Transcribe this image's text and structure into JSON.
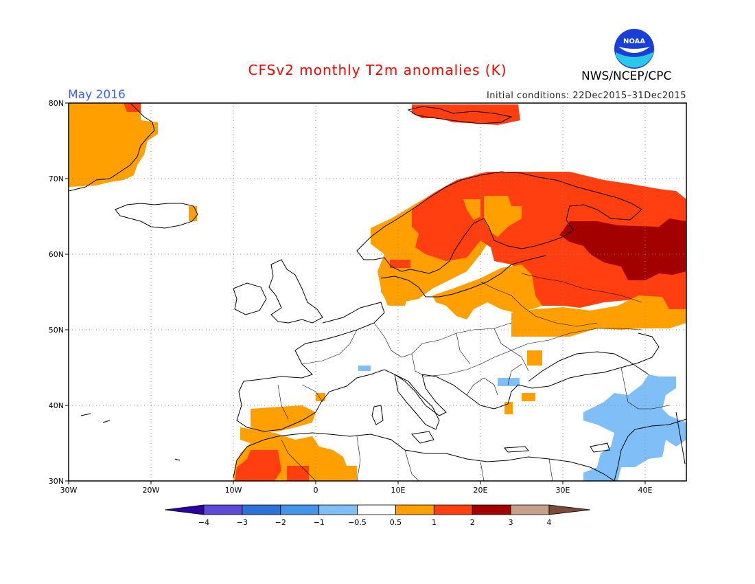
{
  "header": {
    "title": "CFSv2 monthly T2m anomalies (K)",
    "month": "May 2016",
    "initial_conditions": "Initial conditions: 22Dec2015–31Dec2015",
    "agency": "NWS/NCEP/CPC",
    "logo_text": "NOAA",
    "logo_icon": "noaa-logo-icon"
  },
  "map": {
    "lon_range": [
      -30,
      45
    ],
    "lat_range": [
      30,
      80
    ],
    "x_ticks": [
      {
        "lon": -30,
        "label": "30W"
      },
      {
        "lon": -20,
        "label": "20W"
      },
      {
        "lon": -10,
        "label": "10W"
      },
      {
        "lon": 0,
        "label": "0"
      },
      {
        "lon": 10,
        "label": "10E"
      },
      {
        "lon": 20,
        "label": "20E"
      },
      {
        "lon": 30,
        "label": "30E"
      },
      {
        "lon": 40,
        "label": "40E"
      }
    ],
    "y_ticks": [
      {
        "lat": 80,
        "label": "80N"
      },
      {
        "lat": 70,
        "label": "70N"
      },
      {
        "lat": 60,
        "label": "60N"
      },
      {
        "lat": 50,
        "label": "50N"
      },
      {
        "lat": 40,
        "label": "40N"
      },
      {
        "lat": 30,
        "label": "30N"
      }
    ],
    "gridlines": "dotted"
  },
  "legend": {
    "labels": [
      "−4",
      "−3",
      "−2",
      "−1",
      "−0.5",
      "0.5",
      "1",
      "2",
      "3",
      "4"
    ],
    "colors": [
      "#2a00a0",
      "#5c49d6",
      "#2b73d8",
      "#4594ec",
      "#7fbef7",
      "#ffffff",
      "#ff9f00",
      "#ff3f10",
      "#a30000",
      "#c7a08c",
      "#7a4a3a"
    ]
  },
  "chart_data": {
    "type": "heatmap",
    "title": "CFSv2 monthly T2m anomalies (K)",
    "units": "K",
    "bins": [
      -4,
      -3,
      -2,
      -1,
      -0.5,
      0.5,
      1,
      2,
      3,
      4
    ],
    "anomaly_regions": [
      {
        "region": "Greenland (east)",
        "lon": [
          -30,
          -21
        ],
        "lat": [
          69,
          80
        ],
        "class": "0.5 to 1"
      },
      {
        "region": "Iceland (east)",
        "lon": [
          -15,
          -14
        ],
        "lat": [
          64,
          65
        ],
        "class": "0.5 to 1"
      },
      {
        "region": "Svalbard",
        "lon": [
          10,
          28
        ],
        "lat": [
          77,
          80
        ],
        "class": "1 to 2"
      },
      {
        "region": "Scandinavia / Finland",
        "lon": [
          7,
          32
        ],
        "lat": [
          59,
          71
        ],
        "class": "1 to 2"
      },
      {
        "region": "Southern Norway / Denmark",
        "lon": [
          5,
          15
        ],
        "lat": [
          53,
          62
        ],
        "class": "0.5 to 1"
      },
      {
        "region": "Baltic / Poland",
        "lon": [
          15,
          27
        ],
        "lat": [
          51,
          57
        ],
        "class": "0.5 to 1"
      },
      {
        "region": "Western Russia",
        "lon": [
          27,
          45
        ],
        "lat": [
          49,
          68
        ],
        "class": "1 to 2"
      },
      {
        "region": "North-central Russia",
        "lon": [
          31,
          45
        ],
        "lat": [
          57,
          63
        ],
        "class": "2 to 3"
      },
      {
        "region": "Iberia (south)",
        "lon": [
          -10,
          0
        ],
        "lat": [
          36,
          39
        ],
        "class": "0.5 to 1"
      },
      {
        "region": "Morocco / Algeria",
        "lon": [
          -10,
          5
        ],
        "lat": [
          30,
          36
        ],
        "class": "0.5 to 1"
      },
      {
        "region": "Morocco (core)",
        "lon": [
          -10,
          -3
        ],
        "lat": [
          30,
          34
        ],
        "class": "1 to 2"
      },
      {
        "region": "Turkey / Levant",
        "lon": [
          32,
          44
        ],
        "lat": [
          30,
          43
        ],
        "class": "-1 to -0.5"
      },
      {
        "region": "Bulgaria / Black Sea coast",
        "lon": [
          22,
          27
        ],
        "lat": [
          41,
          43
        ],
        "class": "-1 to -0.5"
      },
      {
        "region": "Aegean",
        "lon": [
          23,
          26
        ],
        "lat": [
          38,
          41
        ],
        "class": "0.5 to 1"
      }
    ]
  }
}
